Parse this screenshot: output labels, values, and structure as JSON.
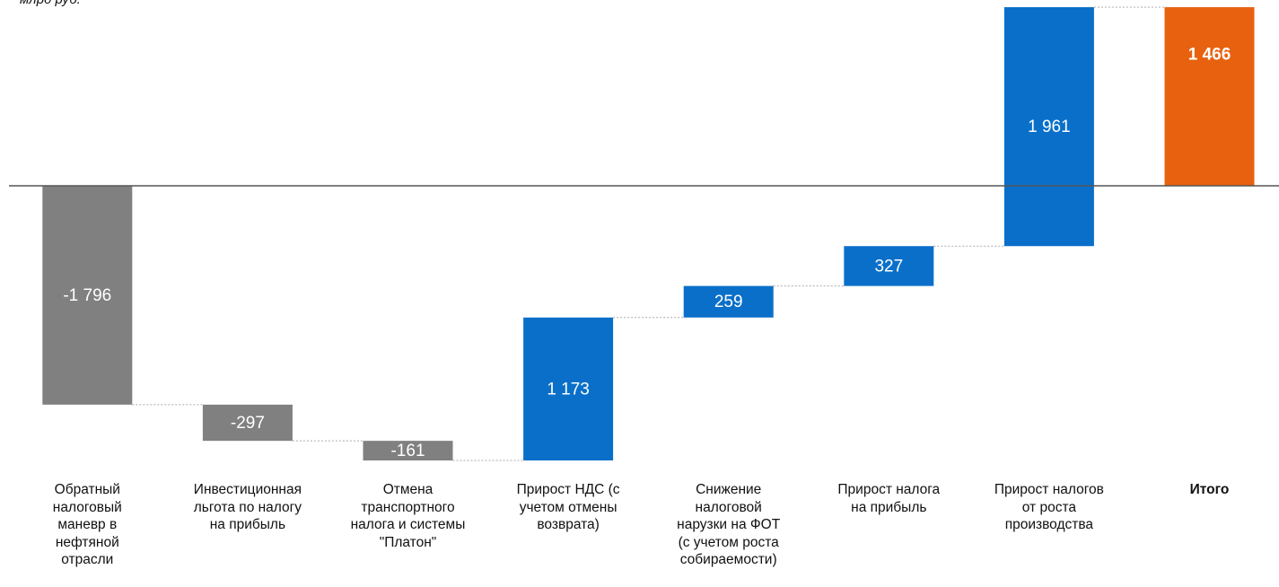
{
  "chart_data": {
    "type": "waterfall",
    "unit": "млрд руб.",
    "categories": [
      "Обратный\nналоговый\nманевр в\nнефтяной\nотрасли",
      "Инвестиционная\nльгота по налогу\nна прибыль",
      "Отмена\nтранспортного\nналога и системы\n\"Платон\"",
      "Прирост НДС (с\nучетом отмены\nвозврата)",
      "Снижение\nналоговой\nнарузки на ФОТ\n(с учетом роста\nсобираемости)",
      "Прирост налога\nна прибыль",
      "Прирост налогов\nот роста\nпроизводства",
      "Итого"
    ],
    "values": [
      -1796,
      -297,
      -161,
      1173,
      259,
      327,
      1961,
      1466
    ],
    "value_labels": [
      "-1 796",
      "-297",
      "-161",
      "1 173",
      "259",
      "327",
      "1 961",
      "1 466"
    ],
    "measure": [
      "relative",
      "relative",
      "relative",
      "relative",
      "relative",
      "relative",
      "relative",
      "total"
    ],
    "colors": [
      "#808080",
      "#808080",
      "#808080",
      "#0a6fc9",
      "#0a6fc9",
      "#0a6fc9",
      "#0a6fc9",
      "#e8610f"
    ]
  }
}
